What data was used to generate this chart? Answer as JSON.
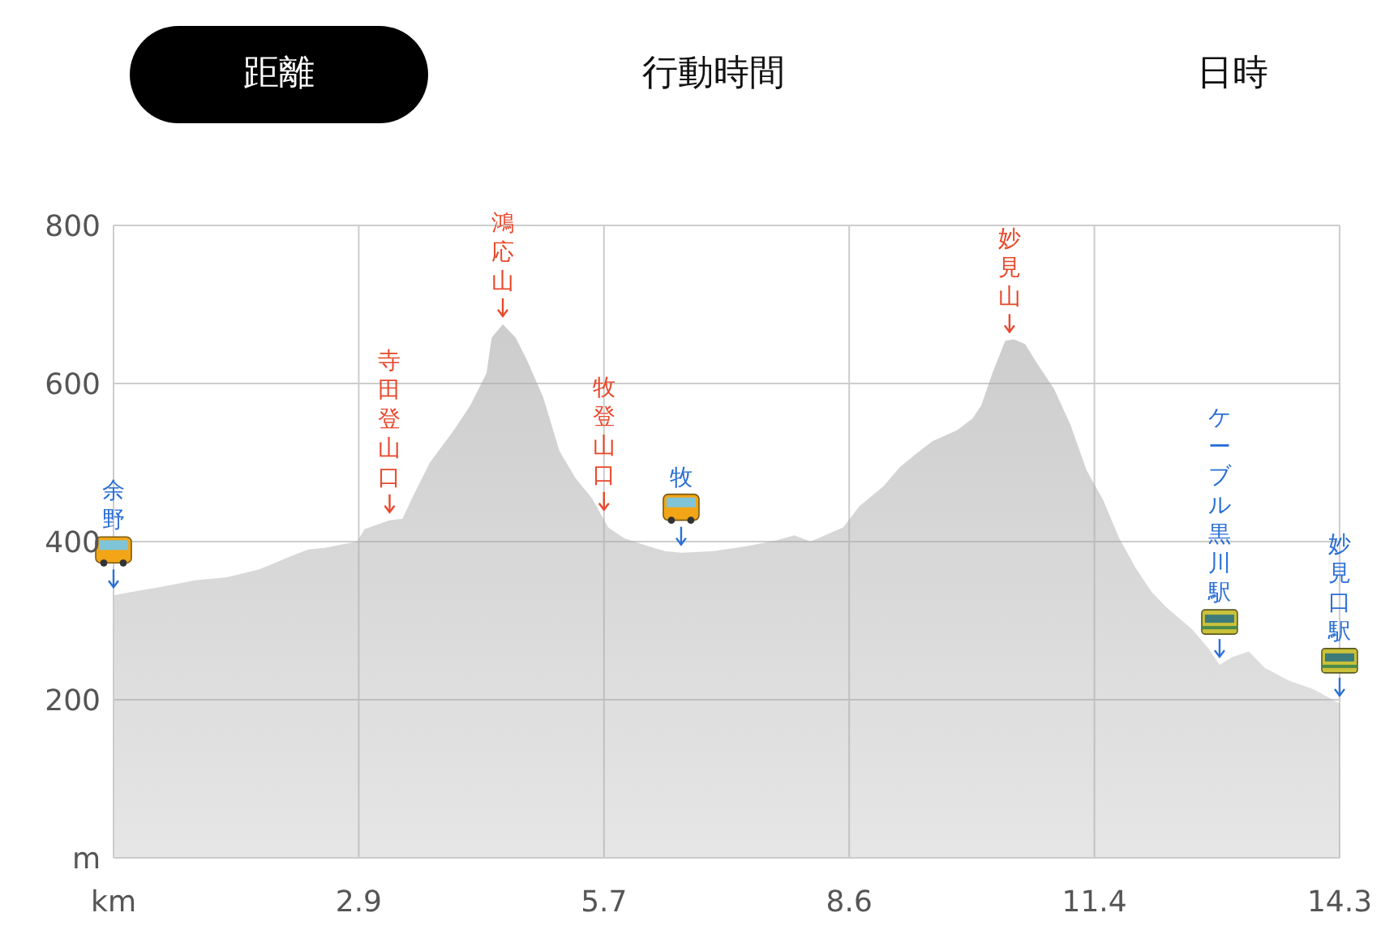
{
  "chart_data": {
    "type": "area",
    "color": "#ababab",
    "x": [
      0,
      0.19,
      0.57,
      0.95,
      1.32,
      1.7,
      2.08,
      2.27,
      2.46,
      2.84,
      2.93,
      3.22,
      3.37,
      3.5,
      3.69,
      3.97,
      4.16,
      4.35,
      4.41,
      4.54,
      4.69,
      4.82,
      5.01,
      5.2,
      5.39,
      5.58,
      5.77,
      5.96,
      6.24,
      6.43,
      6.62,
      7.0,
      7.38,
      7.75,
      7.94,
      8.13,
      8.51,
      8.7,
      8.98,
      9.17,
      9.36,
      9.55,
      9.84,
      10.02,
      10.12,
      10.25,
      10.4,
      10.5,
      10.63,
      10.78,
      10.97,
      11.16,
      11.35,
      11.54,
      11.73,
      11.92,
      12.11,
      12.29,
      12.58,
      12.77,
      12.9,
      13.05,
      13.24,
      13.43,
      13.71,
      14.0,
      14.3
    ],
    "values": [
      332,
      336,
      343,
      351,
      355,
      365,
      382,
      390,
      392,
      400,
      416,
      427,
      429,
      459,
      500,
      541,
      572,
      613,
      658,
      675,
      658,
      630,
      583,
      515,
      480,
      455,
      418,
      404,
      394,
      388,
      386,
      388,
      394,
      402,
      408,
      400,
      418,
      445,
      470,
      494,
      511,
      527,
      541,
      556,
      572,
      613,
      654,
      656,
      650,
      624,
      593,
      548,
      490,
      453,
      404,
      367,
      336,
      316,
      289,
      265,
      244,
      254,
      261,
      240,
      224,
      213,
      195
    ],
    "xlim": [
      0,
      14.3
    ],
    "xticks": [
      {
        "value": 0,
        "label": "km"
      },
      {
        "value": 2.86,
        "label": "2.9"
      },
      {
        "value": 5.72,
        "label": "5.7"
      },
      {
        "value": 8.58,
        "label": "8.6"
      },
      {
        "value": 11.44,
        "label": "11.4"
      },
      {
        "value": 14.3,
        "label": "14.3"
      }
    ],
    "ylim": [
      0,
      800
    ],
    "yticks": [
      {
        "value": 0,
        "label": "m"
      },
      200,
      400,
      600,
      800
    ],
    "grid": true,
    "annotations": [
      "距離",
      "行動時間",
      "日時",
      {
        "text": "余野",
        "x": 0,
        "y": 332
      },
      {
        "text": "寺田登山口",
        "x": 3.22,
        "y": 427
      },
      {
        "text": "鴻応山",
        "x": 4.54,
        "y": 675
      },
      {
        "text": "牧登山口",
        "x": 5.72,
        "y": 430
      },
      {
        "text": "牧",
        "x": 6.62,
        "y": 386
      },
      {
        "text": "妙見山",
        "x": 10.45,
        "y": 655
      },
      {
        "text": "ケーブル黒川駅",
        "x": 12.9,
        "y": 244
      },
      {
        "text": "妙見口駅",
        "x": 14.3,
        "y": 195
      }
    ]
  }
}
